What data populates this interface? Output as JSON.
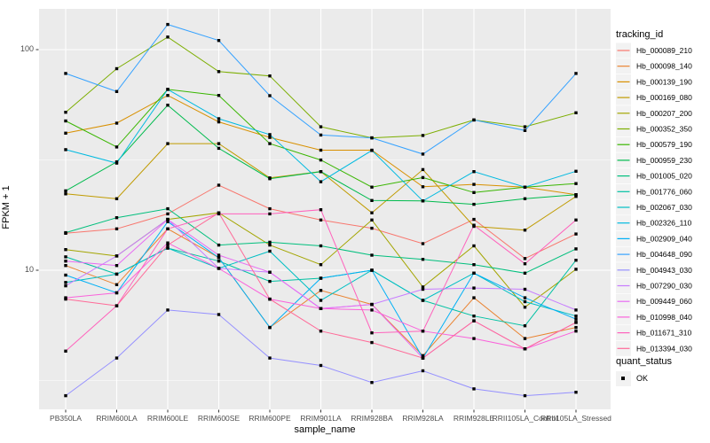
{
  "axes": {
    "y_ticks": [
      "100",
      "10"
    ],
    "y_tick_values": [
      100,
      10
    ],
    "y_minor_values": [
      31.62,
      3.162
    ]
  },
  "legend": {
    "tracking_title": "tracking_id",
    "quant_title": "quant_status",
    "quant_label": "OK"
  },
  "style": {
    "panel_fill": "#ebebeb",
    "grid_color": "#ffffff",
    "tick_color": "#333333",
    "tick_label_color": "#4d4d4d",
    "legend_key_fill": "#f2f2f2",
    "point_color": "#000000"
  },
  "chart_data": {
    "type": "line",
    "title": "",
    "xlabel": "sample_name",
    "ylabel": "FPKM + 1",
    "y_scale": "log10",
    "ylim": [
      2,
      160
    ],
    "grid": true,
    "legend_position": "right",
    "point_marker": {
      "shape": "square",
      "color": "#000000",
      "legend": "quant_status",
      "label": "OK"
    },
    "categories": [
      "PB350LA",
      "RRIM600LA",
      "RRIM600LE",
      "RRIM600SE",
      "RRIM600PE",
      "RRIM901LA",
      "RRIM928BA",
      "RRIM928LA",
      "RRIM928LE",
      "RRII105LA_Control",
      "RRII105LA_Stressed"
    ],
    "series": [
      {
        "name": "Hb_000089_210",
        "color": "#F8766D",
        "values": [
          14.7,
          15.4,
          18,
          24.3,
          19,
          16.9,
          15.5,
          13.2,
          17,
          11.3,
          14.6
        ]
      },
      {
        "name": "Hb_000098_140",
        "color": "#EA8331",
        "values": [
          10.5,
          8.6,
          15.4,
          11.4,
          5.5,
          8.1,
          7,
          4.1,
          7.5,
          4.9,
          5.5
        ]
      },
      {
        "name": "Hb_000139_190",
        "color": "#D89000",
        "values": [
          41.8,
          46.4,
          62,
          47,
          40,
          35,
          35,
          23.9,
          24.5,
          23.8,
          22
        ]
      },
      {
        "name": "Hb_000169_080",
        "color": "#C09B00",
        "values": [
          22.2,
          21.1,
          37.5,
          37.5,
          26.2,
          28,
          18.2,
          28.6,
          15.8,
          15.2,
          21.6
        ]
      },
      {
        "name": "Hb_000207_200",
        "color": "#A3A500",
        "values": [
          12.4,
          11.6,
          17,
          18.2,
          13,
          10.6,
          16.9,
          8.4,
          12.9,
          6.8,
          10.1
        ]
      },
      {
        "name": "Hb_000352_350",
        "color": "#7CAE00",
        "values": [
          52,
          82,
          114,
          79.5,
          76,
          44.7,
          39.8,
          40.8,
          48,
          44.7,
          51.7
        ]
      },
      {
        "name": "Hb_000579_190",
        "color": "#39B600",
        "values": [
          47.5,
          36.2,
          66,
          62,
          37.5,
          31.6,
          23.8,
          26.3,
          22.5,
          23.8,
          24.7
        ]
      },
      {
        "name": "Hb_000959_230",
        "color": "#00BB4E",
        "values": [
          22.9,
          31,
          56,
          35.7,
          26,
          28,
          20.7,
          20.6,
          19.9,
          21.1,
          22
        ]
      },
      {
        "name": "Hb_001005_020",
        "color": "#00BF7D",
        "values": [
          14.8,
          17.3,
          19,
          13,
          13.4,
          12.9,
          11.7,
          11.2,
          10.6,
          9.7,
          12.5
        ]
      },
      {
        "name": "Hb_001776_060",
        "color": "#00C1A3",
        "values": [
          11.5,
          9.6,
          12.6,
          11,
          8.9,
          9.2,
          10,
          7.3,
          6.2,
          5.6,
          11.1
        ]
      },
      {
        "name": "Hb_002067_030",
        "color": "#00BFC4",
        "values": [
          8.8,
          9.6,
          12.6,
          10.2,
          12.2,
          7.3,
          10,
          7.3,
          9.7,
          7.2,
          6.2
        ]
      },
      {
        "name": "Hb_002326_110",
        "color": "#00BAE0",
        "values": [
          35.2,
          30.6,
          66,
          48.6,
          41.2,
          25.2,
          34.9,
          20.6,
          28,
          23.8,
          28.1
        ]
      },
      {
        "name": "Hb_002909_040",
        "color": "#00B0F6",
        "values": [
          9.5,
          7.9,
          16.6,
          11.4,
          5.5,
          9.2,
          10,
          4,
          9.7,
          7.5,
          6
        ]
      },
      {
        "name": "Hb_004648_090",
        "color": "#35A2FF",
        "values": [
          78,
          64.6,
          130,
          110,
          61.8,
          41,
          39.8,
          33.6,
          48,
          43,
          78
        ]
      },
      {
        "name": "Hb_004943_030",
        "color": "#9590FF",
        "values": [
          2.7,
          4,
          6.6,
          6.3,
          4,
          3.7,
          3.1,
          3.5,
          2.9,
          2.7,
          2.8
        ]
      },
      {
        "name": "Hb_007290_030",
        "color": "#C77CFF",
        "values": [
          8.5,
          11.6,
          17,
          10.2,
          9.8,
          6.7,
          7,
          8.2,
          8.3,
          8.2,
          6.6
        ]
      },
      {
        "name": "Hb_009449_060",
        "color": "#E76BF3",
        "values": [
          11,
          10.5,
          17,
          11.7,
          9.8,
          6.7,
          7,
          4,
          5.9,
          4.4,
          5.8
        ]
      },
      {
        "name": "Hb_010998_040",
        "color": "#FA62DB",
        "values": [
          7.5,
          7.9,
          13.3,
          10.2,
          7.4,
          6.7,
          6.6,
          5.3,
          4.9,
          4.4,
          5.3
        ]
      },
      {
        "name": "Hb_011671_310",
        "color": "#FF62BC",
        "values": [
          4.3,
          6.9,
          15.4,
          18,
          18,
          18.8,
          5.2,
          5.3,
          16,
          10.7,
          16.9
        ]
      },
      {
        "name": "Hb_013394_030",
        "color": "#FF6A98",
        "values": [
          7.4,
          6.9,
          13,
          18.2,
          7.4,
          5.3,
          4.7,
          4,
          5.9,
          4.4,
          5.8
        ]
      }
    ]
  }
}
